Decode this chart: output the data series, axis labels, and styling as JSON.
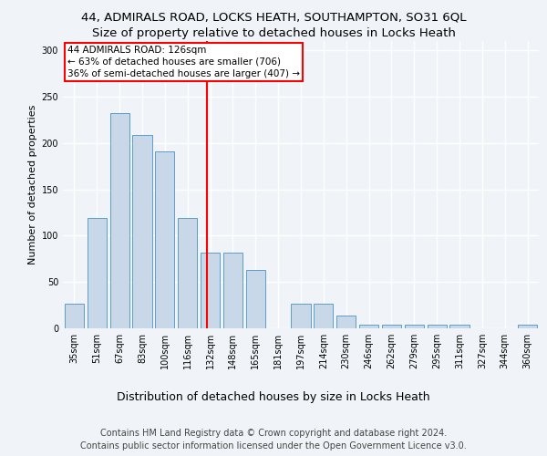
{
  "title_line1": "44, ADMIRALS ROAD, LOCKS HEATH, SOUTHAMPTON, SO31 6QL",
  "title_line2": "Size of property relative to detached houses in Locks Heath",
  "xlabel": "Distribution of detached houses by size in Locks Heath",
  "ylabel": "Number of detached properties",
  "categories": [
    "35sqm",
    "51sqm",
    "67sqm",
    "83sqm",
    "100sqm",
    "116sqm",
    "132sqm",
    "148sqm",
    "165sqm",
    "181sqm",
    "197sqm",
    "214sqm",
    "230sqm",
    "246sqm",
    "262sqm",
    "279sqm",
    "295sqm",
    "311sqm",
    "327sqm",
    "344sqm",
    "360sqm"
  ],
  "values": [
    27,
    119,
    232,
    209,
    191,
    119,
    82,
    82,
    63,
    0,
    27,
    27,
    14,
    4,
    4,
    4,
    4,
    4,
    0,
    0,
    4
  ],
  "bar_color": "#c8d8e8",
  "bar_edge_color": "#5a9ec8",
  "vline_color": "red",
  "vline_pos": 5.85,
  "annotation_line1": "44 ADMIRALS ROAD: 126sqm",
  "annotation_line2": "← 63% of detached houses are smaller (706)",
  "annotation_line3": "36% of semi-detached houses are larger (407) →",
  "box_color": "white",
  "box_edge_color": "red",
  "ylim": [
    0,
    310
  ],
  "yticks": [
    0,
    50,
    100,
    150,
    200,
    250,
    300
  ],
  "footer_line1": "Contains HM Land Registry data © Crown copyright and database right 2024.",
  "footer_line2": "Contains public sector information licensed under the Open Government Licence v3.0.",
  "bg_color": "#f0f4f8",
  "grid_color": "white",
  "title_fontsize": 9.5,
  "subtitle_fontsize": 9.5,
  "xlabel_fontsize": 9,
  "ylabel_fontsize": 8,
  "tick_fontsize": 7,
  "annot_fontsize": 7.5,
  "footer_fontsize": 7
}
